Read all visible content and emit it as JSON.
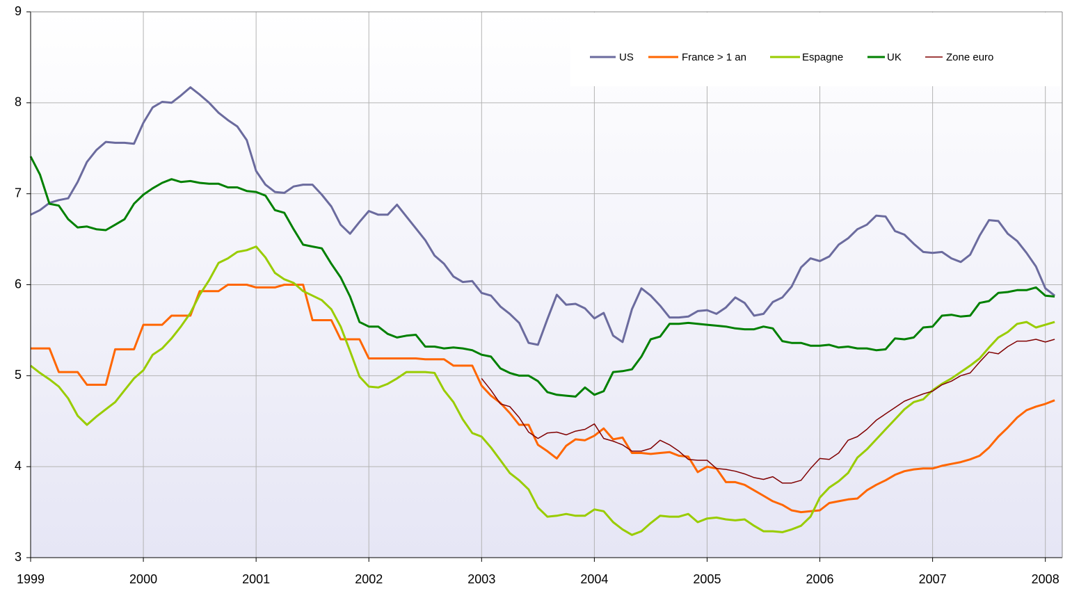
{
  "chart_data": {
    "type": "line",
    "x": [
      1999,
      1999.083,
      1999.167,
      1999.25,
      1999.333,
      1999.417,
      1999.5,
      1999.583,
      1999.667,
      1999.75,
      1999.833,
      1999.917,
      2000,
      2000.083,
      2000.167,
      2000.25,
      2000.333,
      2000.417,
      2000.5,
      2000.583,
      2000.667,
      2000.75,
      2000.833,
      2000.917,
      2001,
      2001.083,
      2001.167,
      2001.25,
      2001.333,
      2001.417,
      2001.5,
      2001.583,
      2001.667,
      2001.75,
      2001.833,
      2001.917,
      2002,
      2002.083,
      2002.167,
      2002.25,
      2002.333,
      2002.417,
      2002.5,
      2002.583,
      2002.667,
      2002.75,
      2002.833,
      2002.917,
      2003,
      2003.083,
      2003.167,
      2003.25,
      2003.333,
      2003.417,
      2003.5,
      2003.583,
      2003.667,
      2003.75,
      2003.833,
      2003.917,
      2004,
      2004.083,
      2004.167,
      2004.25,
      2004.333,
      2004.417,
      2004.5,
      2004.583,
      2004.667,
      2004.75,
      2004.833,
      2004.917,
      2005,
      2005.083,
      2005.167,
      2005.25,
      2005.333,
      2005.417,
      2005.5,
      2005.583,
      2005.667,
      2005.75,
      2005.833,
      2005.917,
      2006,
      2006.083,
      2006.167,
      2006.25,
      2006.333,
      2006.417,
      2006.5,
      2006.583,
      2006.667,
      2006.75,
      2006.833,
      2006.917,
      2007,
      2007.083,
      2007.167,
      2007.25,
      2007.333,
      2007.417,
      2007.5,
      2007.583,
      2007.667,
      2007.75,
      2007.833,
      2007.917,
      2008,
      2008.083
    ],
    "series": [
      {
        "name": "US",
        "color": "#6b6b9e",
        "width": 3,
        "values": [
          6.77,
          6.82,
          6.9,
          6.93,
          6.95,
          7.13,
          7.35,
          7.48,
          7.57,
          7.56,
          7.56,
          7.55,
          7.78,
          7.95,
          8.01,
          8.0,
          8.08,
          8.17,
          8.09,
          8.0,
          7.89,
          7.81,
          7.74,
          7.59,
          7.25,
          7.1,
          7.02,
          7.01,
          7.08,
          7.1,
          7.1,
          6.99,
          6.86,
          6.66,
          6.56,
          6.69,
          6.81,
          6.77,
          6.77,
          6.88,
          6.75,
          6.62,
          6.49,
          6.32,
          6.23,
          6.09,
          6.03,
          6.04,
          5.91,
          5.88,
          5.76,
          5.68,
          5.58,
          5.36,
          5.34,
          5.62,
          5.89,
          5.78,
          5.79,
          5.74,
          5.63,
          5.69,
          5.44,
          5.37,
          5.73,
          5.96,
          5.88,
          5.77,
          5.64,
          5.64,
          5.65,
          5.71,
          5.72,
          5.68,
          5.75,
          5.86,
          5.8,
          5.66,
          5.68,
          5.81,
          5.86,
          5.98,
          6.19,
          6.29,
          6.26,
          6.31,
          6.44,
          6.51,
          6.61,
          6.66,
          6.76,
          6.75,
          6.59,
          6.55,
          6.45,
          6.36,
          6.35,
          6.36,
          6.29,
          6.25,
          6.33,
          6.54,
          6.71,
          6.7,
          6.56,
          6.48,
          6.35,
          6.2,
          5.96,
          5.88
        ]
      },
      {
        "name": "France > 1 an",
        "color": "#ff6600",
        "width": 3,
        "values": [
          5.3,
          5.3,
          5.3,
          5.04,
          5.04,
          5.04,
          4.9,
          4.9,
          4.9,
          5.29,
          5.29,
          5.29,
          5.56,
          5.56,
          5.56,
          5.66,
          5.66,
          5.66,
          5.93,
          5.93,
          5.93,
          6.0,
          6.0,
          6.0,
          5.97,
          5.97,
          5.97,
          6.0,
          6.0,
          6.0,
          5.61,
          5.61,
          5.61,
          5.4,
          5.4,
          5.4,
          5.19,
          5.19,
          5.19,
          5.19,
          5.19,
          5.19,
          5.18,
          5.18,
          5.18,
          5.11,
          5.11,
          5.11,
          4.89,
          4.78,
          4.7,
          4.59,
          4.46,
          4.46,
          4.24,
          4.17,
          4.09,
          4.23,
          4.3,
          4.29,
          4.34,
          4.42,
          4.3,
          4.32,
          4.15,
          4.15,
          4.14,
          4.15,
          4.16,
          4.12,
          4.11,
          3.94,
          4.0,
          3.98,
          3.83,
          3.83,
          3.8,
          3.74,
          3.68,
          3.62,
          3.58,
          3.52,
          3.5,
          3.51,
          3.52,
          3.6,
          3.62,
          3.64,
          3.65,
          3.74,
          3.8,
          3.85,
          3.91,
          3.95,
          3.97,
          3.98,
          3.98,
          4.01,
          4.03,
          4.05,
          4.08,
          4.12,
          4.21,
          4.33,
          4.43,
          4.54,
          4.62,
          4.66,
          4.69,
          4.73
        ]
      },
      {
        "name": "Espagne",
        "color": "#99cc00",
        "width": 3,
        "values": [
          5.11,
          5.03,
          4.96,
          4.88,
          4.75,
          4.56,
          4.46,
          4.55,
          4.63,
          4.71,
          4.84,
          4.97,
          5.06,
          5.23,
          5.3,
          5.41,
          5.54,
          5.69,
          5.89,
          6.05,
          6.24,
          6.29,
          6.36,
          6.38,
          6.42,
          6.3,
          6.13,
          6.06,
          6.02,
          5.93,
          5.88,
          5.83,
          5.73,
          5.54,
          5.27,
          4.99,
          4.88,
          4.87,
          4.91,
          4.97,
          5.04,
          5.04,
          5.04,
          5.03,
          4.84,
          4.71,
          4.52,
          4.37,
          4.33,
          4.21,
          4.07,
          3.93,
          3.85,
          3.75,
          3.55,
          3.45,
          3.46,
          3.48,
          3.46,
          3.46,
          3.53,
          3.51,
          3.39,
          3.31,
          3.25,
          3.29,
          3.38,
          3.46,
          3.45,
          3.45,
          3.48,
          3.39,
          3.43,
          3.44,
          3.42,
          3.41,
          3.42,
          3.35,
          3.29,
          3.29,
          3.28,
          3.31,
          3.35,
          3.45,
          3.66,
          3.77,
          3.84,
          3.93,
          4.1,
          4.19,
          4.3,
          4.41,
          4.52,
          4.63,
          4.71,
          4.74,
          4.84,
          4.91,
          4.97,
          5.04,
          5.11,
          5.19,
          5.31,
          5.42,
          5.48,
          5.57,
          5.59,
          5.53,
          5.56,
          5.59
        ]
      },
      {
        "name": "UK",
        "color": "#008000",
        "width": 3,
        "values": [
          7.41,
          7.21,
          6.89,
          6.87,
          6.72,
          6.63,
          6.64,
          6.61,
          6.6,
          6.66,
          6.72,
          6.89,
          6.99,
          7.06,
          7.12,
          7.16,
          7.13,
          7.14,
          7.12,
          7.11,
          7.11,
          7.07,
          7.07,
          7.03,
          7.02,
          6.98,
          6.82,
          6.79,
          6.61,
          6.44,
          6.42,
          6.4,
          6.23,
          6.08,
          5.87,
          5.59,
          5.54,
          5.54,
          5.46,
          5.42,
          5.44,
          5.45,
          5.32,
          5.32,
          5.3,
          5.31,
          5.3,
          5.28,
          5.23,
          5.21,
          5.08,
          5.03,
          5.0,
          5.0,
          4.94,
          4.82,
          4.79,
          4.78,
          4.77,
          4.87,
          4.79,
          4.83,
          5.04,
          5.05,
          5.07,
          5.21,
          5.4,
          5.43,
          5.57,
          5.57,
          5.58,
          5.57,
          5.56,
          5.55,
          5.54,
          5.52,
          5.51,
          5.51,
          5.54,
          5.52,
          5.38,
          5.36,
          5.36,
          5.33,
          5.33,
          5.34,
          5.31,
          5.32,
          5.3,
          5.3,
          5.28,
          5.29,
          5.41,
          5.4,
          5.42,
          5.53,
          5.54,
          5.66,
          5.67,
          5.65,
          5.66,
          5.8,
          5.82,
          5.91,
          5.92,
          5.94,
          5.94,
          5.97,
          5.88,
          5.87
        ]
      },
      {
        "name": "Zone euro",
        "color": "#800000",
        "width": 1.5,
        "values": [
          null,
          null,
          null,
          null,
          null,
          null,
          null,
          null,
          null,
          null,
          null,
          null,
          null,
          null,
          null,
          null,
          null,
          null,
          null,
          null,
          null,
          null,
          null,
          null,
          null,
          null,
          null,
          null,
          null,
          null,
          null,
          null,
          null,
          null,
          null,
          null,
          null,
          null,
          null,
          null,
          null,
          null,
          null,
          null,
          null,
          null,
          null,
          null,
          4.97,
          4.84,
          4.69,
          4.66,
          4.54,
          4.38,
          4.31,
          4.37,
          4.38,
          4.35,
          4.39,
          4.41,
          4.47,
          4.31,
          4.28,
          4.24,
          4.17,
          4.17,
          4.2,
          4.29,
          4.24,
          4.17,
          4.08,
          4.07,
          4.07,
          3.98,
          3.97,
          3.95,
          3.92,
          3.88,
          3.86,
          3.89,
          3.82,
          3.82,
          3.85,
          3.98,
          4.09,
          4.08,
          4.15,
          4.29,
          4.33,
          4.41,
          4.51,
          4.58,
          4.65,
          4.72,
          4.76,
          4.8,
          4.83,
          4.9,
          4.94,
          5.0,
          5.03,
          5.15,
          5.26,
          5.24,
          5.32,
          5.38,
          5.38,
          5.4,
          5.37,
          5.4
        ]
      }
    ],
    "xlim": [
      1999,
      2008.15
    ],
    "xticks": [
      1999,
      2000,
      2001,
      2002,
      2003,
      2004,
      2005,
      2006,
      2007,
      2008
    ],
    "ylim": [
      3,
      9
    ],
    "yticks": [
      3,
      4,
      5,
      6,
      7,
      8,
      9
    ],
    "grid": true,
    "legend": "top-right"
  }
}
